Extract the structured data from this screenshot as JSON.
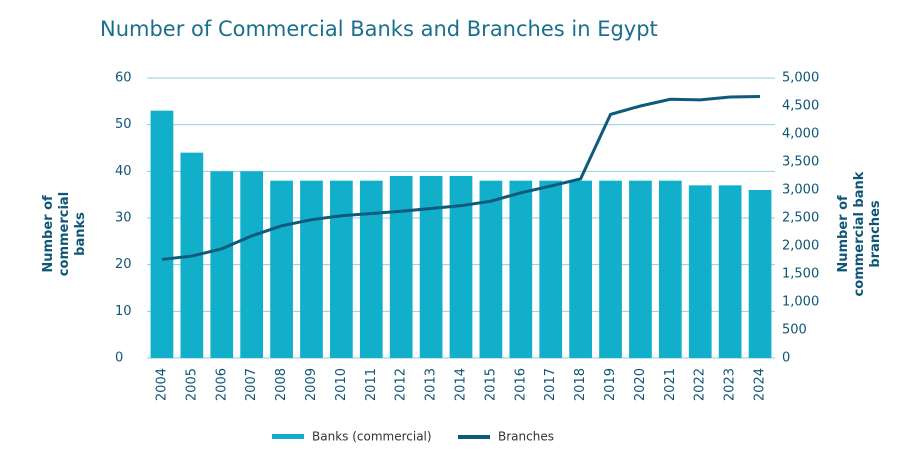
{
  "chart_data": {
    "type": "bar-line",
    "title": "Number of Commercial Banks and Branches in Egypt",
    "ylabel": "Number of commercial banks",
    "y2label": "Number of commercial bank branches",
    "categories": [
      "2004",
      "2005",
      "2006",
      "2007",
      "2008",
      "2009",
      "2010",
      "2011",
      "2012",
      "2013",
      "2014",
      "2015",
      "2016",
      "2017",
      "2018",
      "2019",
      "2020",
      "2021",
      "2022",
      "2023",
      "2024"
    ],
    "series": [
      {
        "name": "Banks (commercial)",
        "type": "bar",
        "color": "#12afca",
        "values": [
          53,
          44,
          40,
          40,
          38,
          38,
          38,
          38,
          39,
          39,
          39,
          38,
          38,
          38,
          38,
          38,
          38,
          38,
          37,
          37,
          36
        ]
      },
      {
        "name": "Branches",
        "type": "line",
        "axis": "y2",
        "color": "#0d5a7c",
        "values": [
          1760,
          1820,
          1950,
          2180,
          2360,
          2470,
          2540,
          2580,
          2620,
          2670,
          2720,
          2800,
          2950,
          3070,
          3200,
          4350,
          4500,
          4620,
          4610,
          4660,
          4670
        ]
      }
    ],
    "ylim": [
      0,
      60
    ],
    "yticks": [
      0,
      10,
      20,
      30,
      40,
      50,
      60
    ],
    "y2lim": [
      0,
      5000
    ],
    "y2ticks": [
      0,
      500,
      {
        "value": 1000,
        "label": "1,000"
      },
      {
        "value": 1500,
        "label": "1,500"
      },
      {
        "value": 2000,
        "label": "2,000"
      },
      {
        "value": 2500,
        "label": "2,500"
      },
      {
        "value": 3000,
        "label": "3,000"
      },
      {
        "value": 3500,
        "label": "3,500"
      },
      {
        "value": 4000,
        "label": "4,000"
      },
      {
        "value": 4500,
        "label": "4,500"
      },
      {
        "value": 5000,
        "label": "5,000"
      }
    ],
    "grid": true
  }
}
